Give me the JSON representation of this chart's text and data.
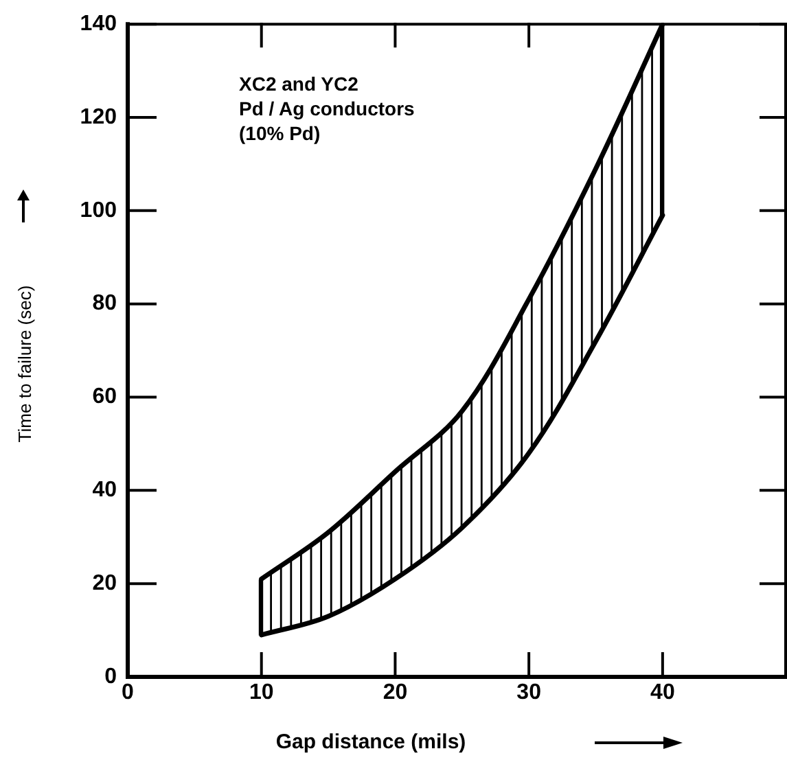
{
  "chart_data": {
    "type": "line",
    "xlabel": "Gap distance (mils)",
    "ylabel": "Time to failure (sec)",
    "annotations": [
      "XC2 and YC2\nPd / Ag conductors\n(10% Pd)"
    ],
    "x": [
      10,
      15,
      20,
      25,
      30,
      35,
      40
    ],
    "series": [
      {
        "color": "#000000",
        "values": [
          21,
          31,
          44,
          57,
          81,
          109,
          140
        ]
      },
      {
        "color": "#000000",
        "values": [
          9,
          13,
          21,
          32,
          48,
          72,
          99
        ]
      }
    ],
    "xlim": [
      0,
      49.2
    ],
    "xticks": [
      0,
      10,
      20,
      30,
      40
    ],
    "ylim": [
      0,
      140
    ],
    "yticks": [
      0,
      20,
      40,
      60,
      80,
      100,
      120,
      140
    ],
    "grid": false,
    "legend": false,
    "marker": "none",
    "line_style": "solid"
  }
}
